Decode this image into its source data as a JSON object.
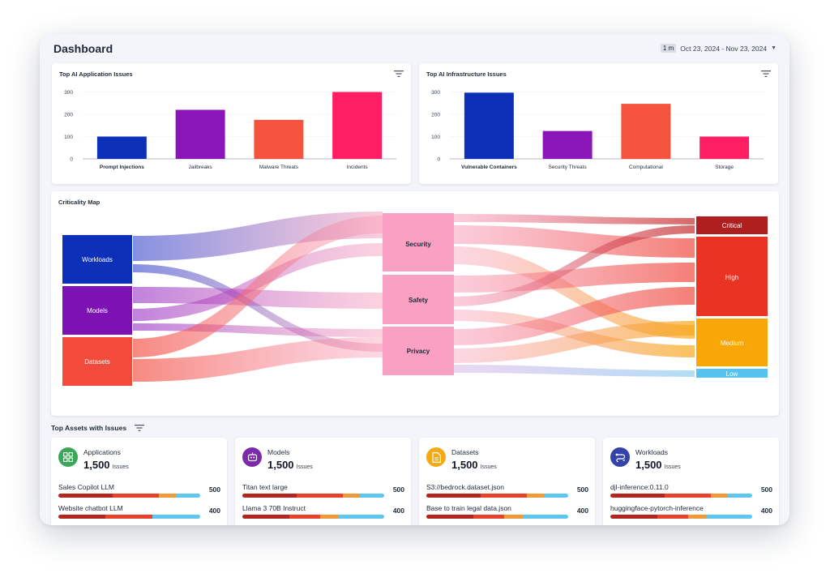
{
  "header": {
    "title": "Dashboard",
    "range_pill": "1 m",
    "date_range": "Oct 23, 2024 - Nov 23, 2024"
  },
  "app_issues": {
    "title": "Top AI Application Issues",
    "chart_data": {
      "type": "bar",
      "title": "Top AI Application Issues",
      "categories": [
        "Prompt Injections",
        "Jailbreaks",
        "Malware Threats",
        "Incidents"
      ],
      "values": [
        100,
        220,
        175,
        300
      ],
      "colors": [
        "#0d30b8",
        "#8a16b8",
        "#f5533e",
        "#ff1d63"
      ],
      "yticks": [
        0,
        100,
        200,
        300
      ],
      "ylim": [
        0,
        320
      ],
      "grid": true
    }
  },
  "infra_issues": {
    "title": "Top AI Infrastructure Issues",
    "chart_data": {
      "type": "bar",
      "title": "Top AI Infrastructure Issues",
      "categories": [
        "Vulnerable Containers",
        "Security Threats",
        "Computational",
        "Storage"
      ],
      "values": [
        297,
        125,
        247,
        100
      ],
      "colors": [
        "#0d30b8",
        "#8a16b8",
        "#f5533e",
        "#ff1d63"
      ],
      "yticks": [
        0,
        100,
        200,
        300
      ],
      "ylim": [
        0,
        320
      ],
      "grid": true
    }
  },
  "criticality": {
    "title": "Criticality Map",
    "sources": [
      {
        "label": "Workloads",
        "color": "#0d30b8"
      },
      {
        "label": "Models",
        "color": "#7c12b4"
      },
      {
        "label": "Datasets",
        "color": "#f24a3b"
      }
    ],
    "middle": [
      {
        "label": "Security"
      },
      {
        "label": "Safety"
      },
      {
        "label": "Privacy"
      }
    ],
    "targets": [
      {
        "label": "Critical",
        "color": "#b01f1f"
      },
      {
        "label": "High",
        "color": "#ea3322"
      },
      {
        "label": "Medium",
        "color": "#f9a608"
      },
      {
        "label": "Low",
        "color": "#56c2ef"
      }
    ]
  },
  "assets": {
    "title": "Top Assets with Issues",
    "severity_colors": [
      "#b3261e",
      "#e8412c",
      "#ef9a3a",
      "#5ec6ef"
    ],
    "cards": [
      {
        "name": "Applications",
        "count": "1,500",
        "unit": "Issues",
        "icon_color": "#3aa856",
        "icon": "grid-icon",
        "rows": [
          {
            "label": "Sales Copilot LLM",
            "value": "500",
            "bar": [
              0.38,
              0.33,
              0.12,
              0.17
            ]
          },
          {
            "label": "Website chatbot LLM",
            "value": "400",
            "bar": [
              0.33,
              0.33,
              0.0,
              0.34
            ]
          }
        ]
      },
      {
        "name": "Models",
        "count": "1,500",
        "unit": "Issues",
        "icon_color": "#7b2aa8",
        "icon": "robot-icon",
        "rows": [
          {
            "label": "Titan text large",
            "value": "500",
            "bar": [
              0.38,
              0.33,
              0.12,
              0.17
            ]
          },
          {
            "label": "Llama 3 70B Instruct",
            "value": "400",
            "bar": [
              0.33,
              0.22,
              0.13,
              0.32
            ]
          }
        ]
      },
      {
        "name": "Datasets",
        "count": "1,500",
        "unit": "Issues",
        "icon_color": "#f4a916",
        "icon": "document-icon",
        "rows": [
          {
            "label": "S3://bedrock.dataset.json",
            "value": "500",
            "bar": [
              0.38,
              0.33,
              0.12,
              0.17
            ]
          },
          {
            "label": "Base to train legal data.json",
            "value": "400",
            "bar": [
              0.33,
              0.22,
              0.13,
              0.32
            ]
          }
        ]
      },
      {
        "name": "Workloads",
        "count": "1,500",
        "unit": "Issues",
        "icon_color": "#3343a8",
        "icon": "workflow-icon",
        "rows": [
          {
            "label": "djl-inference:0.11.0",
            "value": "500",
            "bar": [
              0.38,
              0.33,
              0.12,
              0.17
            ]
          },
          {
            "label": "huggingface-pytorch-inference",
            "value": "400",
            "bar": [
              0.33,
              0.22,
              0.13,
              0.32
            ]
          }
        ]
      }
    ]
  }
}
